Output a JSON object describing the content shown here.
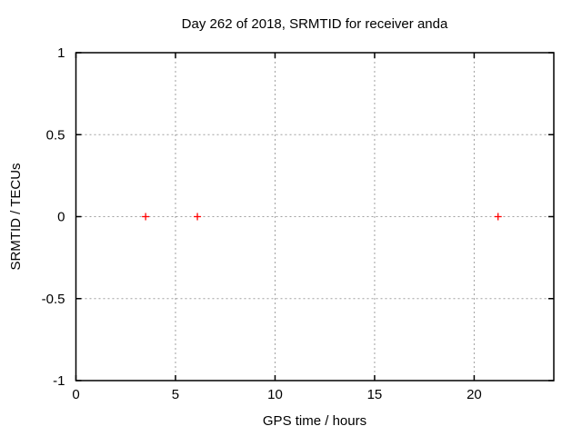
{
  "chart_data": {
    "type": "scatter",
    "title": "Day 262 of 2018, SRMTID for receiver anda",
    "xlabel": "GPS time / hours",
    "ylabel": "SRMTID / TECUs",
    "xlim": [
      0,
      24
    ],
    "ylim": [
      -1,
      1
    ],
    "xticks": [
      0,
      5,
      10,
      15,
      20
    ],
    "yticks": [
      -1,
      -0.5,
      0,
      0.5,
      1
    ],
    "grid": true,
    "grid_style": "dashed",
    "legend_position": "none",
    "grid_color": "#a0a0a0",
    "axis_color": "#000000",
    "background_color": "#ffffff",
    "series": [
      {
        "name": "SRMTID",
        "marker": "plus",
        "color": "#ff0000",
        "points": [
          {
            "x": 3.5,
            "y": 0
          },
          {
            "x": 6.1,
            "y": 0
          },
          {
            "x": 21.2,
            "y": 0
          }
        ]
      }
    ]
  }
}
